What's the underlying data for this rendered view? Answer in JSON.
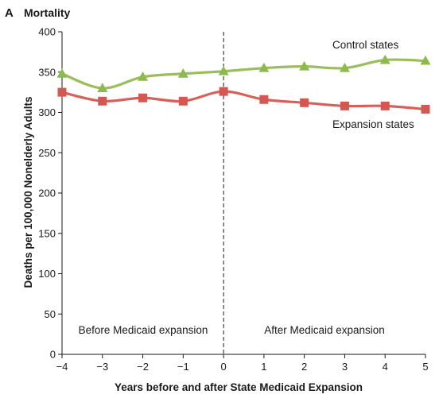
{
  "panel": {
    "letter": "A",
    "title": "Mortality"
  },
  "chart_data": {
    "type": "line",
    "title": "Mortality",
    "xlabel": "Years before and after State Medicaid Expansion",
    "ylabel": "Deaths per 100,000 Nonelderly Adults",
    "xlim": [
      -4,
      5
    ],
    "ylim": [
      0,
      400
    ],
    "x_ticks": [
      -4,
      -3,
      -2,
      -1,
      0,
      1,
      2,
      3,
      4,
      5
    ],
    "x_tick_labels": [
      "−4",
      "−3",
      "−2",
      "−1",
      "0",
      "1",
      "2",
      "3",
      "4",
      "5"
    ],
    "y_ticks": [
      0,
      50,
      100,
      150,
      200,
      250,
      300,
      350,
      400
    ],
    "y_tick_labels": [
      "0",
      "50",
      "100",
      "150",
      "200",
      "250",
      "300",
      "350",
      "400"
    ],
    "grid": false,
    "vertical_reference_line": {
      "x": 0,
      "style": "dashed"
    },
    "x": [
      -4,
      -3,
      -2,
      -1,
      0,
      1,
      2,
      3,
      4,
      5
    ],
    "series": [
      {
        "name": "Control states",
        "marker": "triangle",
        "color": "#9bbd5d",
        "marker_color": "#8dba4e",
        "values": [
          348,
          330,
          344,
          348,
          351,
          355,
          357,
          355,
          365,
          364
        ]
      },
      {
        "name": "Expansion states",
        "marker": "square",
        "color": "#d7605a",
        "marker_color": "#d45852",
        "values": [
          325,
          314,
          318,
          314,
          326,
          316,
          312,
          308,
          308,
          304
        ]
      }
    ],
    "annotations": [
      "Before Medicaid expansion",
      "After Medicaid expansion"
    ]
  }
}
